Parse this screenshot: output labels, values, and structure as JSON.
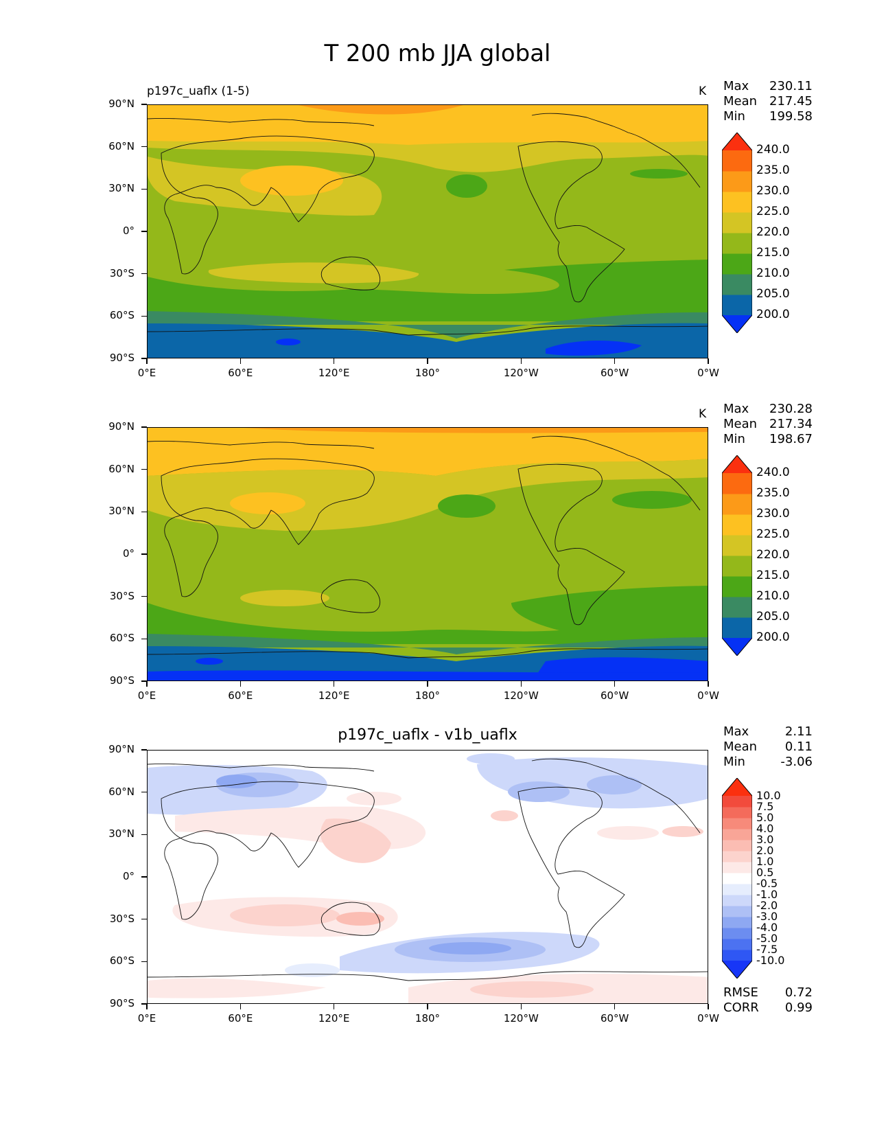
{
  "figure": {
    "title": "T 200 mb JJA global"
  },
  "panels": [
    {
      "left_title": "p197c_uaflx (1-5)",
      "center_title": "",
      "units": "K",
      "stats": [
        {
          "name": "Max",
          "value": "230.11"
        },
        {
          "name": "Mean",
          "value": "217.45"
        },
        {
          "name": "Min",
          "value": "199.58"
        }
      ],
      "colorbar": {
        "levels": [
          "200.0",
          "205.0",
          "210.0",
          "215.0",
          "220.0",
          "225.0",
          "230.0",
          "235.0",
          "240.0"
        ],
        "colors": [
          "#0531f5",
          "#0b66a8",
          "#3a8a62",
          "#4ca717",
          "#94b81a",
          "#d4c524",
          "#fdc121",
          "#fc9a18",
          "#fc6a10",
          "#fb300f"
        ]
      },
      "metrics": []
    },
    {
      "left_title": "",
      "center_title": "",
      "units": "K",
      "stats": [
        {
          "name": "Max",
          "value": "230.28"
        },
        {
          "name": "Mean",
          "value": "217.34"
        },
        {
          "name": "Min",
          "value": "198.67"
        }
      ],
      "colorbar": {
        "levels": [
          "200.0",
          "205.0",
          "210.0",
          "215.0",
          "220.0",
          "225.0",
          "230.0",
          "235.0",
          "240.0"
        ],
        "colors": [
          "#0531f5",
          "#0b66a8",
          "#3a8a62",
          "#4ca717",
          "#94b81a",
          "#d4c524",
          "#fdc121",
          "#fc9a18",
          "#fc6a10",
          "#fb300f"
        ]
      },
      "metrics": []
    },
    {
      "left_title": "",
      "center_title": "p197c_uaflx - v1b_uaflx",
      "units": "",
      "stats": [
        {
          "name": "Max",
          "value": "2.11"
        },
        {
          "name": "Mean",
          "value": "0.11"
        },
        {
          "name": "Min",
          "value": "-3.06"
        }
      ],
      "colorbar": {
        "levels": [
          "-10.0",
          "-7.5",
          "-5.0",
          "-4.0",
          "-3.0",
          "-2.0",
          "-1.0",
          "-0.5",
          "0.5",
          "1.0",
          "2.0",
          "3.0",
          "4.0",
          "5.0",
          "7.5",
          "10.0"
        ],
        "colors": [
          "#1736f7",
          "#2f57f4",
          "#4c72f1",
          "#6c8df0",
          "#8ea8f2",
          "#aec0f5",
          "#cdd8fa",
          "#e6edfd",
          "#ffffff",
          "#fde9e7",
          "#fcd3cd",
          "#fbbdb3",
          "#f9a597",
          "#f78a7a",
          "#f46b5b",
          "#f24b3c",
          "#fb300f"
        ]
      },
      "metrics": [
        {
          "name": "RMSE",
          "value": "0.72"
        },
        {
          "name": "CORR",
          "value": "0.99"
        }
      ]
    }
  ],
  "axes": {
    "lat_labels": [
      "90°N",
      "60°N",
      "30°N",
      "0°",
      "30°S",
      "60°S",
      "90°S"
    ],
    "lon_labels": [
      "0°E",
      "60°E",
      "120°E",
      "180°",
      "120°W",
      "60°W",
      "0°W"
    ]
  }
}
